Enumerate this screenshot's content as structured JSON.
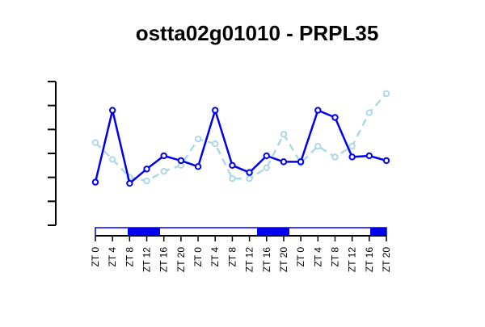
{
  "chart_data": {
    "type": "line",
    "title": "ostta02g01010 - PRPL35",
    "xlabel": "",
    "ylabel": "",
    "categories": [
      "ZT 0",
      "ZT 4",
      "ZT 8",
      "ZT 12",
      "ZT 16",
      "ZT 20",
      "ZT 0",
      "ZT 4",
      "ZT 8",
      "ZT 12",
      "ZT 16",
      "ZT 20",
      "ZT 0",
      "ZT 4",
      "ZT 8",
      "ZT 12",
      "ZT 16",
      "ZT 20"
    ],
    "ylim": [
      0,
      6
    ],
    "y_tick_count": 7,
    "y_tick_labels_shown": false,
    "series": [
      {
        "color": "#0000ee",
        "line_style": "solid",
        "values": [
          1.8,
          4.8,
          1.75,
          2.35,
          2.9,
          2.7,
          2.45,
          4.8,
          2.5,
          2.2,
          2.9,
          2.65,
          2.65,
          4.8,
          4.5,
          2.85,
          2.9,
          2.7
        ]
      },
      {
        "color": "#add8e6",
        "line_style": "dashed",
        "values": [
          3.45,
          2.75,
          2.0,
          1.85,
          2.25,
          2.5,
          3.6,
          3.4,
          1.95,
          1.95,
          2.4,
          3.8,
          2.6,
          3.3,
          2.85,
          3.3,
          4.7,
          5.5
        ]
      }
    ],
    "light_bar": {
      "segments": [
        "light",
        "light",
        "dark",
        "dark",
        "light",
        "light",
        "light",
        "light",
        "light",
        "light",
        "dark",
        "dark",
        "light",
        "light",
        "light",
        "light",
        "light",
        "dark"
      ],
      "light_color": "#ffffff",
      "dark_color": "#0000ee",
      "border_color": "#0000ee"
    }
  }
}
